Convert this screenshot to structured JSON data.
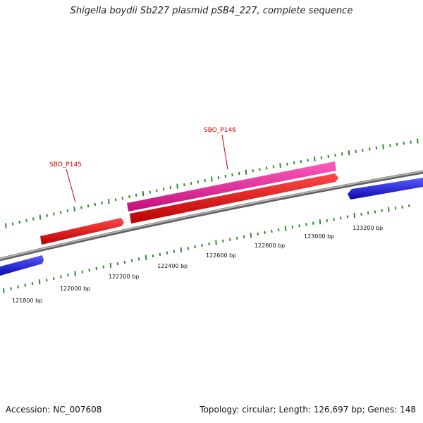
{
  "title": "Shigella boydii Sb227 plasmid pSB4_227, complete sequence",
  "footer": {
    "accession": "Accession: NC_007608",
    "summary": "Topology: circular; Length: 126,697 bp; Genes: 148"
  },
  "scale_labels": [
    "121800 bp",
    "122000 bp",
    "122200 bp",
    "122400 bp",
    "122600 bp",
    "122800 bp",
    "123000 bp",
    "123200 bp"
  ],
  "gene_labels": [
    "SBO_P145",
    "SBO_P146"
  ],
  "colors": {
    "backbone": "#8a8a8a",
    "tick": "#2e8b2e",
    "gene_forward_pink": "#f0289a",
    "gene_forward_red": "#ee1111",
    "gene_reverse_blue": "#1a1adc",
    "label_red": "#cc0000"
  }
}
